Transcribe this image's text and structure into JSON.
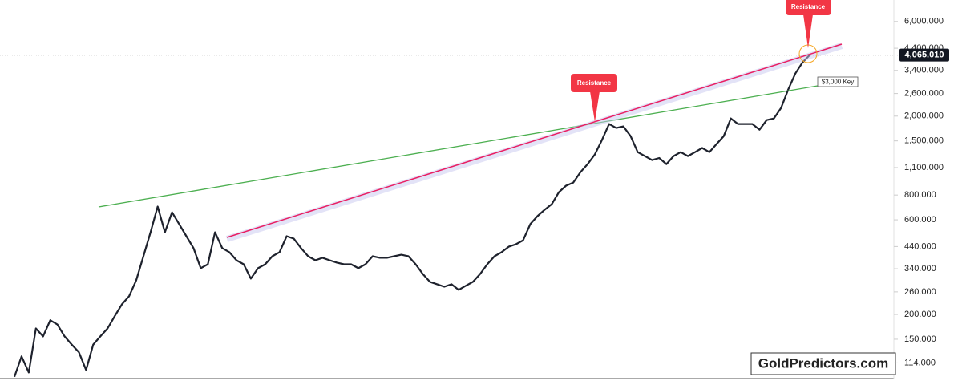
{
  "chart_data": {
    "type": "line",
    "log_scale": true,
    "color": "#1e222d",
    "values": [
      97,
      123,
      102,
      170,
      155,
      187,
      178,
      155,
      141,
      129,
      105,
      141,
      155,
      170,
      196,
      225,
      247,
      297,
      393,
      519,
      700,
      519,
      655,
      571,
      496,
      432,
      342,
      358,
      519,
      432,
      412,
      375,
      358,
      303,
      342,
      358,
      393,
      412,
      496,
      482,
      432,
      393,
      375,
      386,
      375,
      365,
      358,
      358,
      342,
      358,
      393,
      386,
      386,
      393,
      400,
      393,
      358,
      320,
      292,
      284,
      276,
      284,
      266,
      279,
      292,
      320,
      358,
      393,
      412,
      439,
      452,
      473,
      571,
      626,
      674,
      720,
      827,
      892,
      925,
      1043,
      1146,
      1280,
      1514,
      1825,
      1742,
      1775,
      1586,
      1316,
      1257,
      1200,
      1230,
      1146,
      1257,
      1316,
      1257,
      1316,
      1381,
      1316,
      1446,
      1586,
      1946,
      1825,
      1825,
      1825,
      1709,
      1911,
      1946,
      2199,
      2721,
      3277,
      3734,
      4065
    ],
    "ylim": [
      95,
      7700
    ],
    "yticks": [
      {
        "value": 114,
        "label": "114.000"
      },
      {
        "value": 150,
        "label": "150.000"
      },
      {
        "value": 200,
        "label": "200.000"
      },
      {
        "value": 260,
        "label": "260.000"
      },
      {
        "value": 340,
        "label": "340.000"
      },
      {
        "value": 440,
        "label": "440.000"
      },
      {
        "value": 600,
        "label": "600.000"
      },
      {
        "value": 800,
        "label": "800.000"
      },
      {
        "value": 1100,
        "label": "1,100.000"
      },
      {
        "value": 1500,
        "label": "1,500.000"
      },
      {
        "value": 2000,
        "label": "2,000.000"
      },
      {
        "value": 2600,
        "label": "2,600.000"
      },
      {
        "value": 3400,
        "label": "3,400.000"
      },
      {
        "value": 4400,
        "label": "4,400.000"
      },
      {
        "value": 6000,
        "label": "6,000.000"
      }
    ],
    "price_line": {
      "value": 4065.01,
      "label": "4,065.010"
    },
    "annotations": [
      "Resistance",
      "Resistance",
      "$3,000 Key"
    ],
    "watermark": "GoldPredictors.com"
  }
}
